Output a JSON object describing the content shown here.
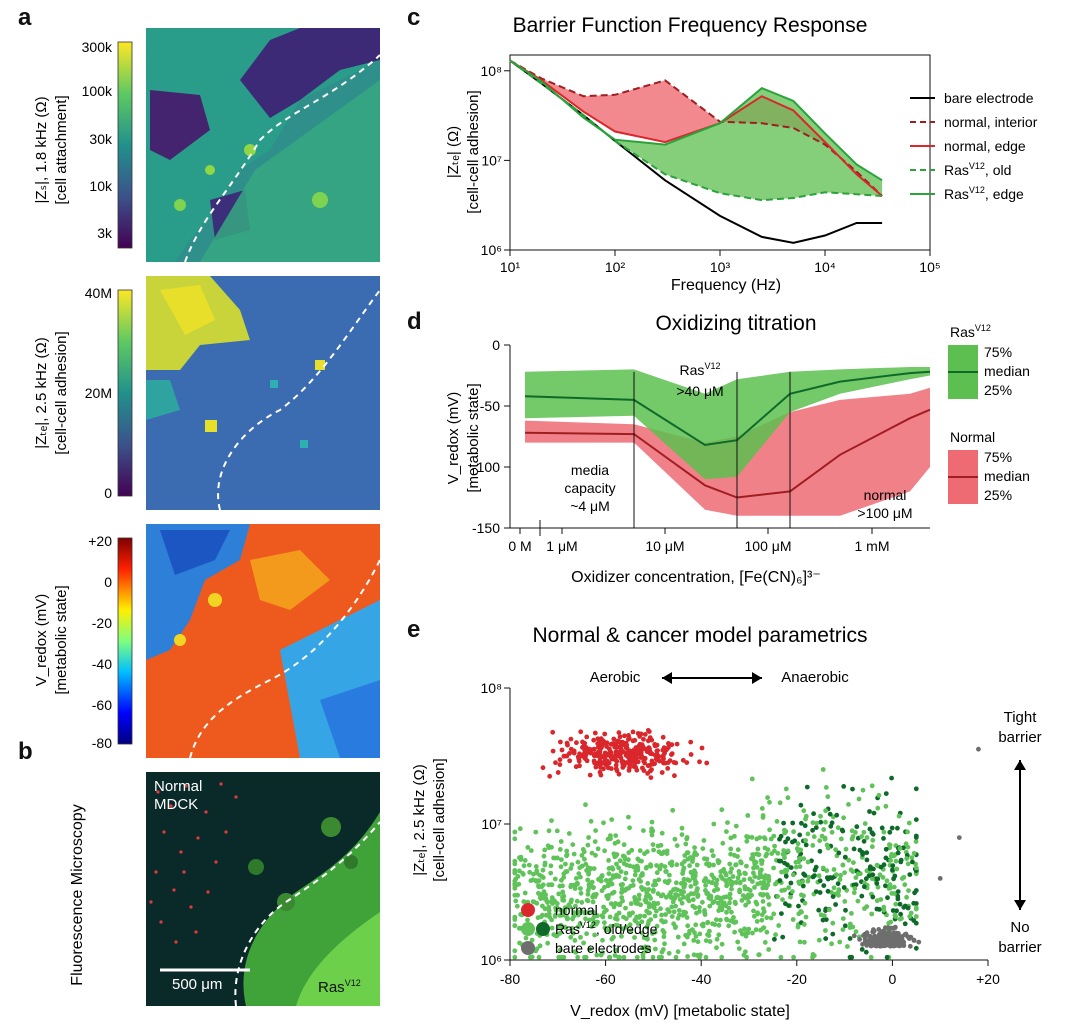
{
  "panels": {
    "a": {
      "label": "a"
    },
    "b": {
      "label": "b"
    },
    "c": {
      "label": "c"
    },
    "d": {
      "label": "d"
    },
    "e": {
      "label": "e"
    }
  },
  "heatmaps": [
    {
      "ylabel_top": "|Zₛ|, 1.8 kHz (Ω)",
      "ylabel_bottom": "[cell attachment]",
      "ticks": [
        "300k",
        "100k",
        "30k",
        "10k",
        "3k"
      ],
      "colormap": "viridis"
    },
    {
      "ylabel_top": "|Zₜₑ|, 2.5 kHz (Ω)",
      "ylabel_bottom": "[cell-cell adhesion]",
      "ticks": [
        "40M",
        "20M",
        "0"
      ],
      "colormap": "viridis"
    },
    {
      "ylabel_top": "V_redox (mV)",
      "ylabel_bottom": "[metabolic state]",
      "ticks": [
        "+20",
        "0",
        "-20",
        "-40",
        "-60",
        "-80"
      ],
      "colormap": "jet"
    }
  ],
  "microscopy": {
    "side_label": "Fluorescence Microscopy",
    "normal_label_1": "Normal",
    "normal_label_2": "MDCK",
    "scale_label": "500 μm",
    "ras_label": "Ras",
    "ras_sup": "V12"
  },
  "colors": {
    "red": "#d9272c",
    "dark_red": "#a01e22",
    "green": "#2aa33a",
    "dark_green": "#0f6a2a",
    "light_green": "#5fc35a",
    "gray": "#6e6e6e",
    "red_fill": "#ef6b73",
    "green_fill": "#5cbf4f"
  },
  "chart_data": [
    {
      "type": "line",
      "title": "Barrier Function Frequency Response",
      "xlabel": "Frequency (Hz)",
      "ylabel_top": "|Zₜₑ| (Ω)",
      "ylabel_bottom": "[cell-cell adhesion]",
      "xscale": "log",
      "yscale": "log",
      "xlim": [
        10,
        100000
      ],
      "ylim": [
        1000000,
        150000000
      ],
      "x_ticks": [
        "10¹",
        "10²",
        "10³",
        "10⁴",
        "10⁵"
      ],
      "y_ticks": [
        "10⁶",
        "10⁷",
        "10⁸"
      ],
      "x": [
        10,
        20,
        50,
        100,
        300,
        1000,
        2500,
        5000,
        10000,
        20000,
        35000
      ],
      "series": [
        {
          "name": "bare electrode",
          "values": [
            130000000,
            72000000,
            32000000,
            16500000,
            6000000,
            2400000,
            1400000,
            1200000,
            1450000,
            2000000,
            2000000
          ]
        },
        {
          "name": "normal, interior",
          "values": [
            130000000,
            82000000,
            52000000,
            54000000,
            78000000,
            27000000,
            26000000,
            23000000,
            15000000,
            7500000,
            4000000
          ]
        },
        {
          "name": "normal, edge",
          "values": [
            130000000,
            78000000,
            35000000,
            21000000,
            16000000,
            26000000,
            52000000,
            36000000,
            16000000,
            7000000,
            4000000
          ]
        },
        {
          "name": "RasV12, old",
          "values": [
            130000000,
            72000000,
            32000000,
            16500000,
            7000000,
            4300000,
            3600000,
            3800000,
            4400000,
            4200000,
            4000000
          ]
        },
        {
          "name": "RasV12, edge",
          "values": [
            130000000,
            76000000,
            30000000,
            17000000,
            15000000,
            26000000,
            64000000,
            46000000,
            20000000,
            9000000,
            6000000
          ]
        }
      ],
      "legend": [
        "bare electrode",
        "normal, interior",
        "normal, edge",
        "RasV12, old",
        "RasV12, edge"
      ],
      "legend_placement": "right"
    },
    {
      "type": "area",
      "title": "Oxidizing titration",
      "xlabel": "Oxidizer concentration, [Fe(CN)₆]³⁻",
      "ylabel_top": "V_redox (mV)",
      "ylabel_bottom": "[metabolic state]",
      "ylim": [
        -150,
        0
      ],
      "y_ticks": [
        "0",
        "-50",
        "-100",
        "-150"
      ],
      "x_ticks": [
        "0 M",
        "1 μM",
        "10 μM",
        "100 μM",
        "1 mM"
      ],
      "x": [
        "0 M",
        "4 μM",
        "17 μM",
        "38 μM",
        "100 μM",
        "200 μM",
        "1 mM",
        "2 mM"
      ],
      "series": [
        {
          "name": "RasV12 75%",
          "values": [
            -22,
            -20,
            -40,
            -28,
            -22,
            -20,
            -18,
            -18
          ]
        },
        {
          "name": "RasV12 median",
          "values": [
            -42,
            -45,
            -82,
            -78,
            -40,
            -30,
            -23,
            -22
          ]
        },
        {
          "name": "RasV12 25%",
          "values": [
            -60,
            -58,
            -110,
            -108,
            -55,
            -40,
            -28,
            -25
          ]
        },
        {
          "name": "Normal 75%",
          "values": [
            -62,
            -65,
            -80,
            -75,
            -55,
            -45,
            -40,
            -35
          ]
        },
        {
          "name": "Normal median",
          "values": [
            -72,
            -73,
            -115,
            -125,
            -120,
            -90,
            -60,
            -53
          ]
        },
        {
          "name": "Normal 25%",
          "values": [
            -80,
            -80,
            -135,
            -140,
            -140,
            -140,
            -120,
            -100
          ]
        }
      ],
      "annotations": [
        "media capacity ~4 μM",
        "Ras",
        "V12",
        ">40 μM",
        "normal >100 μM"
      ],
      "legend_groups": [
        {
          "title": "Ras",
          "sup": "V12",
          "items": [
            "75%",
            "median",
            "25%"
          ]
        },
        {
          "title": "Normal",
          "items": [
            "75%",
            "median",
            "25%"
          ]
        }
      ]
    },
    {
      "type": "scatter",
      "title": "Normal & cancer model parametrics",
      "xlabel": "V_redox (mV) [metabolic state]",
      "ylabel_top": "|Zₜₑ|, 2.5 kHz (Ω)",
      "ylabel_bottom": "[cell-cell adhesion]",
      "xlim": [
        -80,
        20
      ],
      "ylim": [
        1000000,
        100000000
      ],
      "yscale": "log",
      "x_ticks": [
        "-80",
        "-60",
        "-40",
        "-20",
        "0",
        "+20"
      ],
      "y_ticks": [
        "10⁶",
        "10⁷",
        "10⁸"
      ],
      "series": [
        {
          "name": "normal",
          "cluster_center": [
            -57,
            33000000
          ],
          "spread_mv": 8,
          "n_approx": 400
        },
        {
          "name": "RasV12, old/edge",
          "cluster_center": [
            -35,
            5000000
          ],
          "spread_mv": 20,
          "n_approx": 2500
        },
        {
          "name": "bare electrodes",
          "cluster_center": [
            0,
            1300000
          ],
          "spread_mv": 3,
          "n_approx": 300
        }
      ],
      "legend": [
        "normal",
        "RasV12, old/edge",
        "bare electrodes"
      ],
      "annotations": [
        "Aerobic",
        "Anaerobic",
        "Tight barrier",
        "No barrier"
      ]
    }
  ]
}
